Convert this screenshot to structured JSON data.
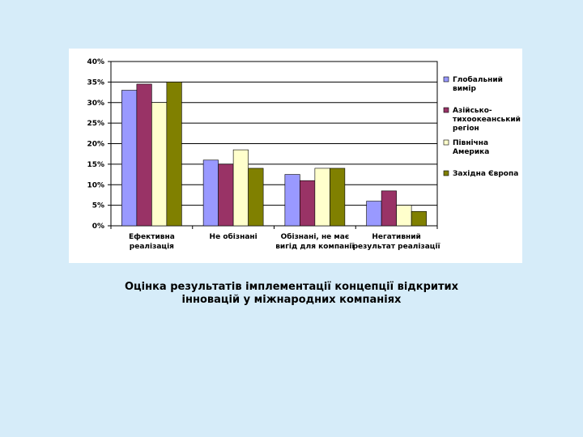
{
  "caption": {
    "line1": "Оцінка результатів імплементації концепції відкритих",
    "line2": "інновацій у міжнародних компаніях"
  },
  "chart_data": {
    "type": "bar",
    "categories": [
      [
        "Ефективна",
        "реалізація"
      ],
      [
        "Не обізнані"
      ],
      [
        "Обізнані, не має",
        "вигід для компанії"
      ],
      [
        "Негативний",
        "результат реалізації"
      ]
    ],
    "y_ticks": [
      "0%",
      "5%",
      "10%",
      "15%",
      "20%",
      "25%",
      "30%",
      "35%",
      "40%"
    ],
    "ylim": [
      0,
      40
    ],
    "grid": true,
    "legend_position": "right",
    "series": [
      {
        "name": [
          "Глобальний",
          "вимір"
        ],
        "color": "#9999ff",
        "values": [
          33,
          16,
          12.5,
          6
        ]
      },
      {
        "name": [
          "Азійсько-",
          "тихоокеанський",
          "регіон"
        ],
        "color": "#993366",
        "values": [
          34.5,
          15,
          11,
          8.5
        ]
      },
      {
        "name": [
          "Північна",
          "Америка"
        ],
        "color": "#ffffcc",
        "values": [
          30,
          18.5,
          14,
          5
        ]
      },
      {
        "name": [
          "Західна Європа"
        ],
        "color": "#808000",
        "values": [
          35,
          14,
          14,
          3.5
        ]
      }
    ]
  }
}
